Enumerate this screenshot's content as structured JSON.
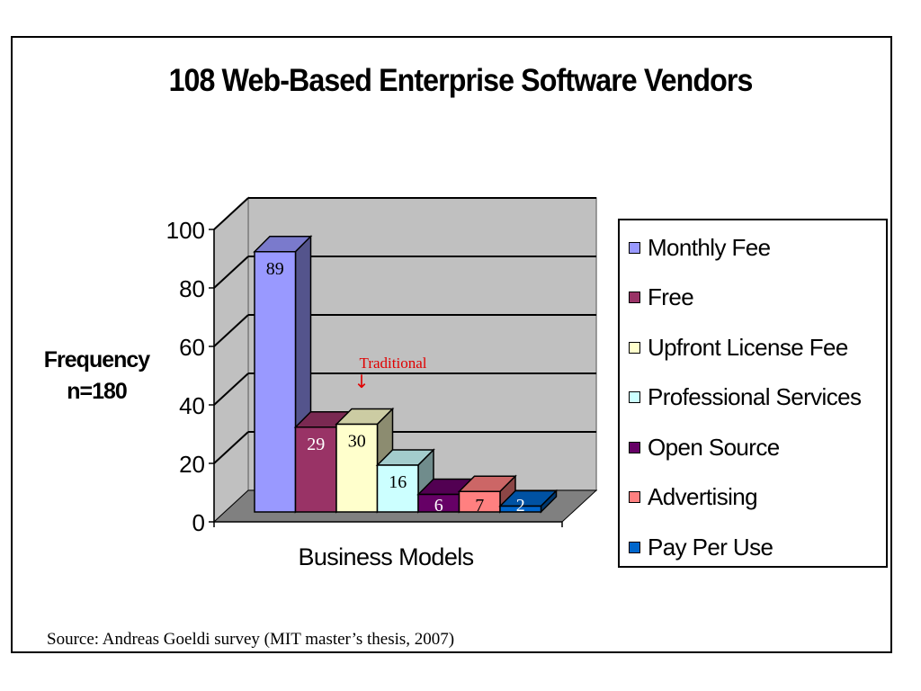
{
  "source_note": "Source:  Andreas Goeldi survey (MIT master’s thesis, 2007)",
  "annotation": {
    "text": "Traditional",
    "arrow": "↓",
    "color": "#e00000"
  },
  "chart_data": {
    "type": "bar",
    "title": "108 Web-Based Enterprise Software Vendors",
    "xlabel": "Business Models",
    "ylabel_lines": [
      "Frequency",
      "n=180"
    ],
    "ylim": [
      0,
      100
    ],
    "yticks": [
      "0",
      "20",
      "40",
      "60",
      "80",
      "100"
    ],
    "grid": true,
    "legend_position": "right",
    "series": [
      {
        "name": "Monthly Fee",
        "value": 89,
        "color": "#9999ff"
      },
      {
        "name": "Free",
        "value": 29,
        "color": "#993366"
      },
      {
        "name": "Upfront License Fee",
        "value": 30,
        "color": "#ffffcc"
      },
      {
        "name": "Professional Services",
        "value": 16,
        "color": "#ccffff"
      },
      {
        "name": "Open Source",
        "value": 6,
        "color": "#660066"
      },
      {
        "name": "Advertising",
        "value": 7,
        "color": "#ff8080"
      },
      {
        "name": "Pay Per Use",
        "value": 2,
        "color": "#0066cc"
      }
    ]
  }
}
